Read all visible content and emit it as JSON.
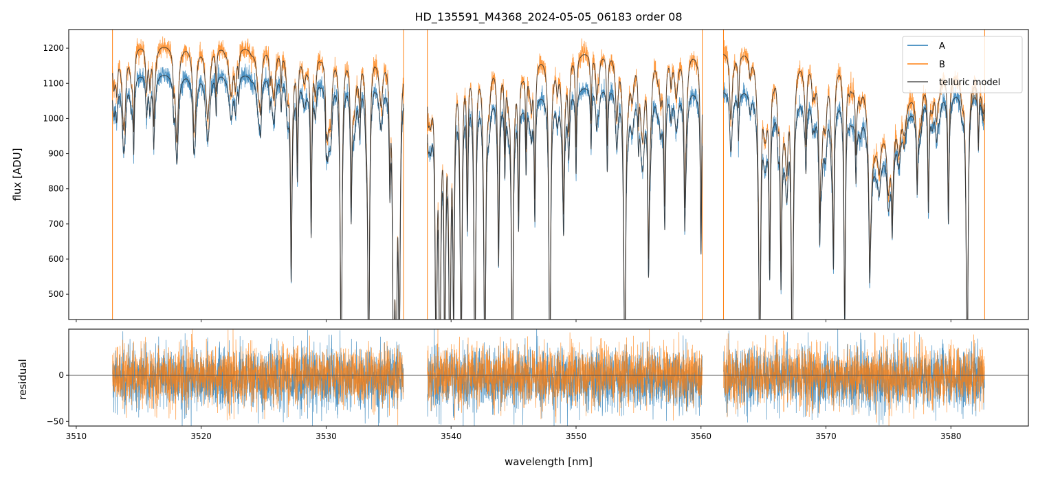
{
  "chart_data": [
    {
      "type": "line",
      "panel": "spectrum",
      "title": "HD_135591_M4368_2024-05-05_06183  order 08",
      "xlabel": "wavelength [nm]",
      "ylabel": "flux [ADU]",
      "xlim": [
        3509.4,
        3586.2
      ],
      "ylim": [
        428,
        1253
      ],
      "xticks": [
        3510,
        3520,
        3530,
        3540,
        3550,
        3560,
        3570,
        3580
      ],
      "yticks": [
        500,
        600,
        700,
        800,
        900,
        1000,
        1100,
        1200
      ],
      "grid": false,
      "legend": {
        "placement": "top-right",
        "entries": [
          "A",
          "B",
          "telluric model"
        ]
      },
      "colors": {
        "A": "#1f77b4",
        "B": "#ff7f0e",
        "model": "#333333"
      },
      "segments": [
        [
          3512.9,
          3536.2
        ],
        [
          3538.1,
          3560.1
        ],
        [
          3561.8,
          3582.7
        ]
      ],
      "continuum": {
        "A": [
          [
            3512.9,
            1135
          ],
          [
            3524,
            1130
          ],
          [
            3536.2,
            1115
          ],
          [
            3538.1,
            1095
          ],
          [
            3547,
            1075
          ],
          [
            3553,
            1100
          ],
          [
            3560.1,
            1090
          ],
          [
            3561.8,
            1085
          ],
          [
            3568,
            1075
          ],
          [
            3572.8,
            1060
          ],
          [
            3574,
            860
          ],
          [
            3576,
            1000
          ],
          [
            3578,
            1075
          ],
          [
            3582.7,
            1090
          ]
        ],
        "B": [
          [
            3512.9,
            1218
          ],
          [
            3525,
            1205
          ],
          [
            3536.2,
            1190
          ],
          [
            3538.1,
            1185
          ],
          [
            3545,
            1170
          ],
          [
            3556,
            1205
          ],
          [
            3560.1,
            1195
          ],
          [
            3561.8,
            1195
          ],
          [
            3568,
            1180
          ],
          [
            3572.8,
            1165
          ],
          [
            3573.8,
            925
          ],
          [
            3576,
            1040
          ],
          [
            3579,
            1150
          ],
          [
            3582.7,
            1110
          ]
        ]
      },
      "absorption_lines": [
        {
          "wl": 3514.6,
          "depth": 0.17
        },
        {
          "wl": 3516.2,
          "depth": 0.14
        },
        {
          "wl": 3517.8,
          "depth": 0.07
        },
        {
          "wl": 3519.4,
          "depth": 0.06
        },
        {
          "wl": 3521.2,
          "depth": 0.1
        },
        {
          "wl": 3523.0,
          "depth": 0.06
        },
        {
          "wl": 3525.5,
          "depth": 0.06
        },
        {
          "wl": 3526.4,
          "depth": 0.08
        },
        {
          "wl": 3527.2,
          "depth": 0.47
        },
        {
          "wl": 3527.7,
          "depth": 0.25
        },
        {
          "wl": 3528.8,
          "depth": 0.4
        },
        {
          "wl": 3530.0,
          "depth": 0.12
        },
        {
          "wl": 3531.2,
          "depth": 0.8
        },
        {
          "wl": 3532.0,
          "depth": 0.32
        },
        {
          "wl": 3532.7,
          "depth": 0.1
        },
        {
          "wl": 3533.4,
          "depth": 0.8
        },
        {
          "wl": 3535.1,
          "depth": 0.25
        },
        {
          "wl": 3535.4,
          "depth": 0.8
        },
        {
          "wl": 3535.6,
          "depth": 0.8
        },
        {
          "wl": 3535.85,
          "depth": 0.75
        },
        {
          "wl": 3538.8,
          "depth": 0.8
        },
        {
          "wl": 3539.1,
          "depth": 0.8
        },
        {
          "wl": 3539.5,
          "depth": 0.75
        },
        {
          "wl": 3539.9,
          "depth": 0.8
        },
        {
          "wl": 3540.2,
          "depth": 0.6
        },
        {
          "wl": 3540.8,
          "depth": 0.8
        },
        {
          "wl": 3541.3,
          "depth": 0.35
        },
        {
          "wl": 3541.9,
          "depth": 0.8
        },
        {
          "wl": 3542.7,
          "depth": 0.8
        },
        {
          "wl": 3543.8,
          "depth": 0.4
        },
        {
          "wl": 3544.3,
          "depth": 0.2
        },
        {
          "wl": 3544.9,
          "depth": 0.8
        },
        {
          "wl": 3545.4,
          "depth": 0.35
        },
        {
          "wl": 3546.0,
          "depth": 0.2
        },
        {
          "wl": 3546.7,
          "depth": 0.33
        },
        {
          "wl": 3547.9,
          "depth": 0.8
        },
        {
          "wl": 3549.0,
          "depth": 0.26
        },
        {
          "wl": 3550.0,
          "depth": 0.22
        },
        {
          "wl": 3551.2,
          "depth": 0.16
        },
        {
          "wl": 3552.5,
          "depth": 0.22
        },
        {
          "wl": 3553.9,
          "depth": 0.8
        },
        {
          "wl": 3555.0,
          "depth": 0.12
        },
        {
          "wl": 3555.8,
          "depth": 0.43
        },
        {
          "wl": 3557.1,
          "depth": 0.28
        },
        {
          "wl": 3558.7,
          "depth": 0.28
        },
        {
          "wl": 3560.0,
          "depth": 0.43
        },
        {
          "wl": 3563.0,
          "depth": 0.12
        },
        {
          "wl": 3564.7,
          "depth": 0.8
        },
        {
          "wl": 3565.5,
          "depth": 0.45
        },
        {
          "wl": 3566.4,
          "depth": 0.47
        },
        {
          "wl": 3567.3,
          "depth": 0.8
        },
        {
          "wl": 3568.4,
          "depth": 0.15
        },
        {
          "wl": 3569.5,
          "depth": 0.28
        },
        {
          "wl": 3570.6,
          "depth": 0.38
        },
        {
          "wl": 3571.5,
          "depth": 0.62
        },
        {
          "wl": 3572.4,
          "depth": 0.15
        },
        {
          "wl": 3573.5,
          "depth": 0.32
        },
        {
          "wl": 3575.3,
          "depth": 0.22
        },
        {
          "wl": 3577.3,
          "depth": 0.2
        },
        {
          "wl": 3578.2,
          "depth": 0.3
        },
        {
          "wl": 3579.8,
          "depth": 0.32
        },
        {
          "wl": 3581.3,
          "depth": 0.8
        },
        {
          "wl": 3582.2,
          "depth": 0.15
        }
      ],
      "weak_lines": {
        "count": 170,
        "max_depth": 0.12
      },
      "noise_adu": {
        "A": 14,
        "B": 15
      }
    },
    {
      "type": "line",
      "panel": "residual",
      "xlabel": "wavelength [nm]",
      "ylabel": "residual",
      "xlim": [
        3509.4,
        3586.2
      ],
      "ylim": [
        -55,
        50
      ],
      "yticks": [
        -50,
        0
      ],
      "zero_line": 0,
      "residual_noise": {
        "A": 17,
        "B": 16
      }
    }
  ]
}
